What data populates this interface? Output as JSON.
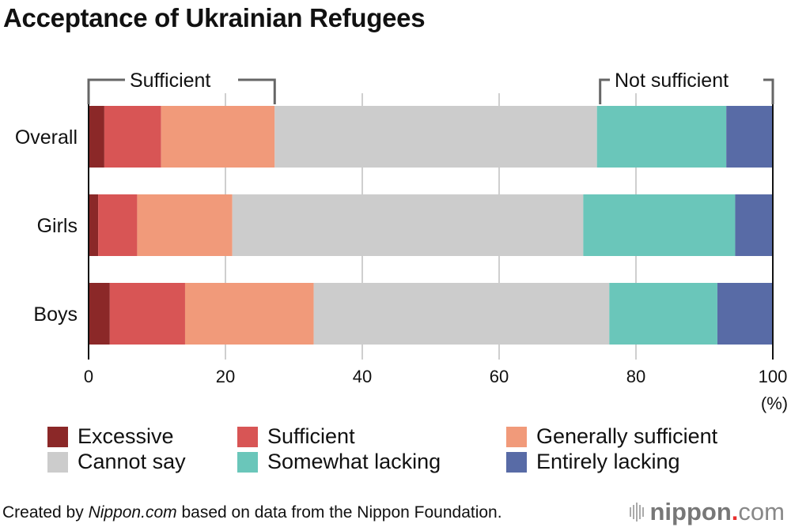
{
  "chart_data": {
    "type": "bar",
    "orientation": "horizontal",
    "stacked": true,
    "title": "Acceptance of Ukrainian Refugees",
    "categories": [
      "Overall",
      "Girls",
      "Boys"
    ],
    "series": [
      {
        "name": "Excessive",
        "color": "#8b2828",
        "values": [
          2.3,
          1.4,
          3.1
        ]
      },
      {
        "name": "Sufficient",
        "color": "#d85555",
        "values": [
          8.3,
          5.7,
          11.0
        ]
      },
      {
        "name": "Generally sufficient",
        "color": "#f19a7a",
        "values": [
          16.6,
          13.9,
          18.8
        ]
      },
      {
        "name": "Cannot say",
        "color": "#cccccc",
        "values": [
          47.1,
          51.3,
          43.2
        ]
      },
      {
        "name": "Somewhat lacking",
        "color": "#6ac6ba",
        "values": [
          18.9,
          22.2,
          15.8
        ]
      },
      {
        "name": "Entirely lacking",
        "color": "#586ba6",
        "values": [
          6.8,
          5.5,
          8.1
        ]
      }
    ],
    "xlim": [
      0,
      100
    ],
    "xticks": [
      "0",
      "20",
      "40",
      "60",
      "80",
      "100"
    ],
    "xunit": "(%)",
    "grid": true,
    "legend_position": "bottom",
    "annotations": [
      {
        "label": "Sufficient",
        "spans": "first three series (Overall)"
      },
      {
        "label": "Not sufficient",
        "spans": "last two series (Overall)"
      }
    ]
  },
  "footer": {
    "prefix": "Created by ",
    "source_italic": "Nippon.com",
    "suffix": " based on data from the Nippon Foundation."
  },
  "logo": {
    "name": "nippon",
    "dot": ".",
    "tld": "com"
  }
}
